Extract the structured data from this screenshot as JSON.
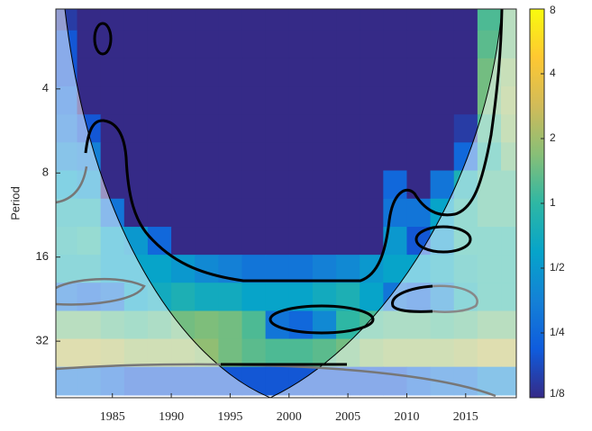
{
  "chart_data": {
    "type": "heatmap",
    "ylabel": "Period",
    "x": [
      1981,
      1983,
      1985,
      1987,
      1989,
      1991,
      1993,
      1995,
      1997,
      1999,
      2001,
      2003,
      2005,
      2007,
      2009,
      2011,
      2013,
      2015,
      2017,
      2019
    ],
    "y": [
      2.2,
      2.77,
      3.49,
      4.4,
      5.54,
      6.98,
      8.8,
      11.1,
      14,
      17.6,
      22.2,
      28,
      35.2,
      44.4
    ],
    "values": [
      [
        0.15,
        0.08,
        0.05,
        0.05,
        0.05,
        0.05,
        0.05,
        0.05,
        0.05,
        0.05,
        0.05,
        0.05,
        0.05,
        0.05,
        0.05,
        0.05,
        0.05,
        0.08,
        1.2,
        1.5
      ],
      [
        0.2,
        0.08,
        0.05,
        0.05,
        0.05,
        0.05,
        0.05,
        0.05,
        0.05,
        0.05,
        0.05,
        0.05,
        0.05,
        0.05,
        0.05,
        0.05,
        0.05,
        0.08,
        1.3,
        1.5
      ],
      [
        0.2,
        0.1,
        0.05,
        0.05,
        0.05,
        0.05,
        0.05,
        0.05,
        0.05,
        0.05,
        0.05,
        0.05,
        0.05,
        0.05,
        0.05,
        0.05,
        0.05,
        0.1,
        1.5,
        1.8
      ],
      [
        0.25,
        0.1,
        0.05,
        0.05,
        0.05,
        0.05,
        0.05,
        0.05,
        0.05,
        0.05,
        0.05,
        0.05,
        0.05,
        0.05,
        0.05,
        0.05,
        0.05,
        0.12,
        1.5,
        2
      ],
      [
        0.3,
        0.2,
        0.06,
        0.06,
        0.06,
        0.06,
        0.06,
        0.06,
        0.06,
        0.06,
        0.06,
        0.06,
        0.06,
        0.06,
        0.06,
        0.06,
        0.06,
        0.15,
        1.2,
        1.8
      ],
      [
        0.4,
        0.35,
        0.07,
        0.07,
        0.07,
        0.07,
        0.07,
        0.07,
        0.07,
        0.07,
        0.07,
        0.07,
        0.07,
        0.07,
        0.07,
        0.07,
        0.08,
        0.25,
        1,
        1.5
      ],
      [
        0.6,
        0.5,
        0.12,
        0.06,
        0.06,
        0.06,
        0.06,
        0.06,
        0.06,
        0.06,
        0.06,
        0.06,
        0.06,
        0.06,
        0.25,
        0.1,
        0.3,
        0.8,
        1.2,
        1.2
      ],
      [
        0.8,
        0.8,
        0.3,
        0.12,
        0.07,
        0.07,
        0.07,
        0.07,
        0.07,
        0.07,
        0.07,
        0.07,
        0.07,
        0.07,
        0.3,
        0.3,
        0.6,
        1,
        1.2,
        1.2
      ],
      [
        0.9,
        1,
        0.6,
        0.5,
        0.25,
        0.1,
        0.07,
        0.07,
        0.07,
        0.07,
        0.07,
        0.07,
        0.07,
        0.1,
        0.5,
        0.2,
        0.5,
        1,
        1,
        1
      ],
      [
        0.8,
        0.8,
        0.6,
        0.6,
        0.6,
        0.5,
        0.4,
        0.35,
        0.3,
        0.3,
        0.3,
        0.35,
        0.4,
        0.5,
        0.6,
        0.6,
        0.7,
        0.9,
        1,
        1
      ],
      [
        0.3,
        0.25,
        0.3,
        0.6,
        0.7,
        0.8,
        0.7,
        0.7,
        0.6,
        0.6,
        0.6,
        0.7,
        0.8,
        0.6,
        0.3,
        0.25,
        0.4,
        0.8,
        1,
        1
      ],
      [
        1.5,
        1.5,
        1.3,
        1.2,
        1.3,
        1.5,
        1.6,
        1.5,
        1.2,
        0.3,
        0.25,
        0.4,
        1,
        1.2,
        1.3,
        1.3,
        1.2,
        1.3,
        1.5,
        1.5
      ],
      [
        2.5,
        2.5,
        2.3,
        2,
        2,
        2,
        1.8,
        1.5,
        1.3,
        1.2,
        1.2,
        1.3,
        1.5,
        1.8,
        2,
        2,
        2,
        2.2,
        2.5,
        2.5
      ],
      [
        0.3,
        0.3,
        0.25,
        0.2,
        0.2,
        0.2,
        0.2,
        0.2,
        0.2,
        0.2,
        0.2,
        0.2,
        0.2,
        0.2,
        0.2,
        0.25,
        0.3,
        0.3,
        0.4,
        0.4
      ]
    ],
    "xlim": [
      1980.2,
      2019.3
    ],
    "xticks": [
      1985,
      1990,
      1995,
      2000,
      2005,
      2010,
      2015
    ],
    "ylim": [
      2.07,
      51
    ],
    "yticks": [
      4,
      8,
      16,
      32
    ],
    "yscale": "log2",
    "yreverse": true,
    "colorbar": {
      "lim": [
        0.125,
        8
      ],
      "scale": "log2",
      "ticks": [
        {
          "value": 0.125,
          "label": "1/8"
        },
        {
          "value": 0.25,
          "label": "1/4"
        },
        {
          "value": 0.5,
          "label": "1/2"
        },
        1,
        2,
        4,
        8
      ],
      "colormap": [
        "#352a87",
        "#0f5cdd",
        "#1481d6",
        "#06a4ca",
        "#2eb7a4",
        "#87bf77",
        "#d1bb59",
        "#fec832",
        "#f9fb0e"
      ]
    }
  }
}
